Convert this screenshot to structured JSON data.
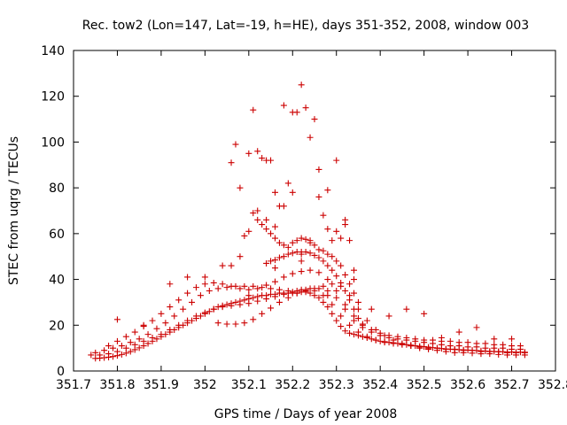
{
  "chart_data": {
    "type": "scatter",
    "title": "Rec. tow2 (Lon=147, Lat=-19, h=HE), days 351-352, 2008, window 003",
    "xlabel": "GPS time / Days of year 2008",
    "ylabel": "STEC from uqrg / TECUs",
    "xlim": [
      351.7,
      352.8
    ],
    "ylim": [
      0,
      140
    ],
    "x_ticks": [
      "351.7",
      "351.8",
      "351.9",
      "352",
      "352.1",
      "352.2",
      "352.3",
      "352.4",
      "352.5",
      "352.6",
      "352.7",
      "352.8"
    ],
    "y_ticks": [
      "0",
      "20",
      "40",
      "60",
      "80",
      "100",
      "120",
      "140"
    ],
    "grid": false,
    "marker": "+",
    "colors": {
      "points": "#cc0000",
      "axes": "#000000"
    },
    "series": [
      {
        "x": [
          351.75,
          351.76,
          351.77,
          351.78,
          351.79,
          351.8,
          351.81,
          351.82,
          351.83,
          351.84,
          351.85,
          351.86,
          351.87,
          351.88,
          351.89,
          351.9,
          351.91,
          351.92,
          351.93,
          351.94,
          351.95,
          351.96,
          351.97,
          351.98,
          351.99,
          352.0,
          352.01,
          352.02,
          352.03,
          352.04,
          352.05,
          352.06,
          352.07,
          352.08,
          352.09,
          352.1,
          352.11,
          352.12,
          352.13,
          352.14,
          352.15,
          352.16,
          352.17,
          352.18,
          352.19,
          352.2,
          352.21,
          352.22,
          352.23,
          352.24,
          352.25,
          352.26,
          352.27,
          352.28,
          352.29,
          352.3,
          352.31,
          352.32,
          352.33,
          352.34,
          352.35,
          352.36,
          352.37,
          352.38,
          352.39,
          352.4,
          352.41,
          352.42,
          352.43,
          352.44,
          352.45,
          352.46,
          352.47,
          352.48,
          352.49,
          352.5,
          352.51,
          352.52,
          352.53,
          352.54,
          352.55,
          352.56,
          352.57,
          352.58,
          352.59,
          352.6,
          352.61,
          352.62,
          352.63,
          352.64,
          352.65,
          352.66,
          352.67,
          352.68,
          352.69,
          352.7,
          352.71,
          352.72,
          352.73
        ],
        "y": [
          5.5,
          5.6,
          5.8,
          6,
          6.3,
          6.7,
          7.2,
          7.8,
          8.5,
          9.3,
          10.1,
          11,
          12,
          13,
          14,
          15,
          16,
          17,
          18,
          19,
          20,
          21,
          22,
          23,
          24,
          25,
          26,
          27,
          28,
          28.5,
          29,
          29.5,
          30,
          30.5,
          31,
          31.5,
          32,
          32.5,
          33,
          33,
          33.5,
          33.5,
          34,
          34,
          34,
          34,
          34,
          34.5,
          34.5,
          34,
          33,
          32,
          30,
          28,
          25,
          22,
          19.5,
          17.5,
          16.5,
          16,
          15.5,
          15,
          14.5,
          14,
          13.5,
          13,
          12.8,
          12.5,
          12.3,
          12,
          11.8,
          11.5,
          11.3,
          11,
          10.8,
          10.6,
          10.4,
          10.2,
          10,
          9.8,
          9.6,
          9.5,
          9.4,
          9.3,
          9.2,
          9.1,
          9,
          8.9,
          8.8,
          8.7,
          8.6,
          8.5,
          8.4,
          8.4,
          8.3,
          8.3,
          8.2,
          8.2,
          8.2
        ]
      },
      {
        "x": [
          351.76,
          351.78,
          351.8,
          351.82,
          351.84,
          351.86,
          351.88,
          351.9,
          351.92,
          351.94,
          351.96,
          351.98,
          352.0,
          352.02,
          352.04,
          352.06,
          352.08,
          352.1,
          352.12,
          352.14,
          352.16,
          352.18,
          352.2,
          352.22,
          352.24,
          352.26,
          352.28,
          352.3,
          352.32,
          352.34,
          352.36,
          352.38,
          352.4,
          352.42,
          352.44,
          352.46,
          352.48,
          352.5,
          352.52,
          352.54,
          352.56,
          352.58,
          352.6,
          352.62,
          352.64,
          352.66,
          352.68,
          352.7,
          352.72
        ],
        "y": [
          7,
          7.5,
          8.5,
          10,
          11.5,
          13,
          14.5,
          16,
          18,
          20,
          22,
          24,
          25.5,
          27,
          28,
          28.5,
          29,
          29.5,
          30.5,
          31.5,
          32.5,
          33.5,
          34.5,
          35.5,
          36,
          36,
          35,
          32,
          27,
          22,
          19,
          17,
          15.5,
          14.5,
          14,
          13.5,
          13,
          12.5,
          12,
          11.5,
          11,
          11,
          10.5,
          10.5,
          10,
          10,
          10,
          9.5,
          9.5
        ]
      },
      {
        "x": [
          351.75,
          351.77,
          351.79,
          351.81,
          351.83,
          351.85,
          351.87,
          351.89,
          351.91,
          351.93,
          351.95,
          351.97,
          351.99,
          352.01,
          352.03,
          352.05,
          352.07,
          352.09,
          352.11,
          352.13,
          352.15,
          352.17,
          352.19,
          352.21,
          352.23,
          352.25,
          352.27,
          352.29,
          352.31,
          352.33,
          352.35,
          352.37,
          352.39,
          352.41,
          352.43,
          352.45,
          352.47,
          352.49,
          352.51,
          352.53,
          352.55,
          352.57,
          352.59,
          352.61,
          352.63,
          352.65,
          352.67,
          352.69,
          352.71,
          352.73
        ],
        "y": [
          8,
          9,
          10,
          11,
          12.5,
          14,
          16,
          18.5,
          21,
          24,
          27,
          30,
          33,
          35,
          36,
          36.5,
          37,
          37,
          37,
          36.5,
          36,
          35.5,
          35,
          35,
          35.5,
          36,
          37,
          38,
          37,
          33,
          27,
          22,
          18,
          15.5,
          13.5,
          12,
          11,
          10,
          9.5,
          9,
          8.5,
          8,
          8,
          7.8,
          7.5,
          7.5,
          7.2,
          7,
          7,
          7
        ]
      },
      {
        "x": [
          352.03,
          352.05,
          352.07,
          352.09,
          352.11,
          352.13,
          352.15,
          352.17,
          352.19,
          352.21,
          352.23,
          352.25,
          352.27,
          352.29,
          352.31,
          352.33,
          352.35,
          352.37,
          352.39,
          352.41,
          352.43,
          352.45,
          352.47,
          352.49,
          352.51,
          352.53,
          352.55,
          352.57,
          352.59,
          352.61,
          352.63,
          352.65,
          352.67,
          352.69,
          352.71,
          352.73
        ],
        "y": [
          21,
          20.5,
          20.5,
          21,
          22.5,
          25,
          27.5,
          30,
          32,
          34,
          35,
          35,
          33,
          29,
          24,
          20,
          17,
          15,
          13.5,
          12.5,
          12,
          11.5,
          11,
          10.5,
          10,
          10,
          9.5,
          9.5,
          9,
          9,
          8.5,
          8.5,
          8.5,
          8,
          8,
          8
        ]
      },
      {
        "x": [
          351.78,
          351.8,
          351.82,
          351.84,
          351.86,
          351.88,
          351.9,
          351.92,
          351.94,
          351.96,
          351.98,
          352.0,
          352.02,
          352.04,
          352.06,
          352.08,
          352.1,
          352.12,
          352.14,
          352.16,
          352.18,
          352.2,
          352.22,
          352.24,
          352.26,
          352.28,
          352.3,
          352.32,
          352.34,
          352.36,
          352.38,
          352.4,
          352.42,
          352.44,
          352.46,
          352.48,
          352.5,
          352.52,
          352.54,
          352.56,
          352.58,
          352.6,
          352.62,
          352.64,
          352.66,
          352.68,
          352.7,
          352.72
        ],
        "y": [
          11,
          13,
          15,
          17,
          19.5,
          22,
          25,
          28,
          31,
          34,
          36.5,
          38,
          38.5,
          38,
          37,
          36,
          35.5,
          36,
          37.5,
          39,
          41,
          42.5,
          43.5,
          44,
          43,
          40,
          35,
          29,
          24,
          20.5,
          18,
          16.5,
          15.5,
          15,
          14.5,
          14,
          13.5,
          13.5,
          13,
          13,
          12.5,
          12.5,
          12,
          12,
          11.5,
          11.5,
          11,
          11
        ]
      },
      {
        "x": [
          352.14,
          352.15,
          352.16,
          352.17,
          352.18,
          352.19,
          352.2,
          352.21,
          352.22,
          352.23,
          352.24,
          352.25,
          352.26,
          352.27,
          352.28,
          352.29,
          352.3,
          352.31,
          352.32,
          352.33,
          352.34,
          352.35,
          352.36
        ],
        "y": [
          47,
          48,
          48.5,
          49.5,
          50,
          51,
          51.5,
          52,
          52,
          52,
          51.5,
          50.5,
          49.5,
          48,
          46,
          44,
          41.5,
          38.5,
          35,
          31,
          27,
          23,
          20
        ]
      },
      {
        "x": [
          352.11,
          352.12,
          352.13,
          352.14,
          352.15,
          352.16,
          352.17,
          352.18,
          352.19,
          352.2,
          352.21,
          352.22,
          352.23,
          352.24,
          352.25,
          352.26,
          352.27,
          352.28,
          352.29,
          352.3,
          352.31,
          352.32,
          352.33,
          352.34,
          352.35
        ],
        "y": [
          69,
          66,
          64,
          62,
          60,
          58,
          56,
          55,
          54,
          56,
          57,
          58,
          57.5,
          56,
          55,
          53,
          52.5,
          51,
          50,
          48,
          46,
          42,
          38,
          34,
          30
        ]
      },
      {
        "x": [
          352.06,
          352.07,
          352.08,
          352.09,
          352.1,
          352.11,
          352.12,
          352.13,
          352.14,
          352.15,
          352.16,
          352.17,
          352.18,
          352.19,
          352.2,
          352.21,
          352.22,
          352.23,
          352.24,
          352.25,
          352.26,
          352.27,
          352.28,
          352.29,
          352.3,
          352.31,
          352.32,
          352.33
        ],
        "y": [
          91,
          99,
          80,
          59,
          95,
          114,
          96,
          93,
          92,
          92,
          78,
          72,
          116,
          82,
          113,
          113,
          125,
          115,
          102,
          110,
          88,
          68,
          62,
          57,
          92,
          58,
          66,
          57
        ]
      },
      {
        "x": [
          352.06,
          352.08,
          352.1,
          352.12,
          352.14,
          352.16,
          352.18,
          352.2,
          352.22,
          352.24,
          352.26,
          352.28,
          352.3,
          352.32,
          352.34
        ],
        "y": [
          46,
          50,
          61,
          70,
          66,
          63,
          72,
          78,
          51,
          57,
          76,
          79,
          61,
          64,
          44
        ]
      },
      {
        "x": [
          351.74,
          351.8,
          351.86,
          351.92,
          351.96,
          352.0,
          352.04,
          352.1,
          352.16,
          352.22,
          352.28,
          352.34,
          352.38,
          352.42,
          352.46,
          352.5,
          352.54,
          352.58,
          352.62,
          352.66,
          352.7
        ],
        "y": [
          7,
          22.5,
          20,
          38,
          41,
          41,
          46,
          33,
          45,
          48,
          33,
          40,
          27,
          24,
          27,
          25,
          14.5,
          17,
          19,
          14,
          14
        ]
      }
    ]
  }
}
